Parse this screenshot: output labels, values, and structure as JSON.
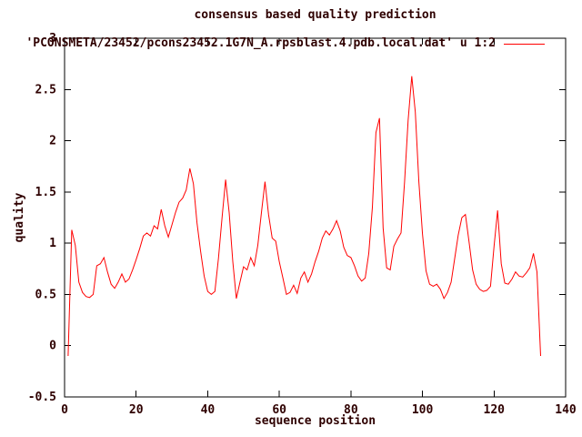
{
  "title": "consensus based quality prediction",
  "legend": {
    "label": "'PCONSMETA/23452/pcons23452.1G7N_A.rpsblast.4.pdb.local.dat' u 1:2",
    "line_color": "#ff0000"
  },
  "colors": {
    "background": "#ffffff",
    "border": "#000000",
    "text": "#2e0000",
    "series_line": "#ff0000"
  },
  "chart_data": {
    "type": "line",
    "title": "consensus based quality prediction",
    "xlabel": "sequence position",
    "ylabel": "quality",
    "xlim": [
      0,
      140
    ],
    "ylim": [
      -0.5,
      3
    ],
    "x_ticks": [
      0,
      20,
      40,
      60,
      80,
      100,
      120,
      140
    ],
    "x_tick_labels": [
      "0",
      "20",
      "40",
      "60",
      "80",
      "100",
      "120",
      "140"
    ],
    "y_ticks": [
      -0.5,
      0,
      0.5,
      1,
      1.5,
      2,
      2.5,
      3
    ],
    "y_tick_labels": [
      "-0.5",
      "0",
      "0.5",
      "1",
      "1.5",
      "2",
      "2.5",
      "3"
    ],
    "grid": false,
    "legend_position": "top-right-inside",
    "series": [
      {
        "name": "'PCONSMETA/23452/pcons23452.1G7N_A.rpsblast.4.pdb.local.dat' u 1:2",
        "color": "#ff0000",
        "x_start": 1,
        "x_step": 1,
        "y": [
          -0.1,
          1.13,
          0.98,
          0.62,
          0.52,
          0.48,
          0.47,
          0.5,
          0.78,
          0.8,
          0.86,
          0.72,
          0.6,
          0.56,
          0.62,
          0.7,
          0.62,
          0.65,
          0.74,
          0.84,
          0.95,
          1.07,
          1.1,
          1.07,
          1.17,
          1.14,
          1.33,
          1.17,
          1.06,
          1.18,
          1.3,
          1.4,
          1.44,
          1.52,
          1.73,
          1.58,
          1.2,
          0.92,
          0.68,
          0.53,
          0.5,
          0.53,
          0.85,
          1.25,
          1.62,
          1.3,
          0.82,
          0.46,
          0.62,
          0.77,
          0.74,
          0.86,
          0.78,
          0.98,
          1.3,
          1.6,
          1.28,
          1.05,
          1.02,
          0.82,
          0.66,
          0.5,
          0.52,
          0.59,
          0.51,
          0.66,
          0.72,
          0.62,
          0.7,
          0.82,
          0.92,
          1.05,
          1.12,
          1.08,
          1.14,
          1.22,
          1.12,
          0.96,
          0.88,
          0.86,
          0.78,
          0.68,
          0.63,
          0.66,
          0.9,
          1.35,
          2.08,
          2.22,
          1.15,
          0.76,
          0.74,
          0.97,
          1.04,
          1.1,
          1.6,
          2.2,
          2.63,
          2.28,
          1.6,
          1.09,
          0.73,
          0.6,
          0.58,
          0.6,
          0.55,
          0.46,
          0.52,
          0.62,
          0.85,
          1.08,
          1.25,
          1.28,
          1.02,
          0.74,
          0.6,
          0.55,
          0.53,
          0.54,
          0.58,
          0.97,
          1.32,
          0.8,
          0.61,
          0.6,
          0.65,
          0.72,
          0.68,
          0.67,
          0.71,
          0.76,
          0.9,
          0.72,
          -0.1
        ]
      }
    ]
  }
}
